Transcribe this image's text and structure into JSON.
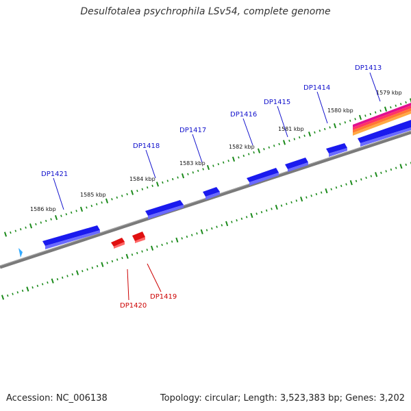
{
  "title": "Desulfotalea psychrophila LSv54, complete genome",
  "accession": "Accession: NC_006138",
  "stats": "Topology: circular; Length: 3,523,383 bp; Genes: 3,202",
  "colors": {
    "forward_gene": "#1a1aee",
    "reverse_gene": "#e01010",
    "backbone": "#7a7a7a",
    "tick": "#1a8a1a",
    "forward_label": "#1010cc",
    "reverse_label": "#cc0000",
    "marker": "#33aaff"
  },
  "scale_labels": [
    "1579 kbp",
    "1580 kbp",
    "1581 kbp",
    "1582 kbp",
    "1583 kbp",
    "1584 kbp",
    "1585 kbp",
    "1586 kbp"
  ],
  "forward_genes": [
    "DP1413",
    "DP1414",
    "DP1415",
    "DP1416",
    "DP1417",
    "DP1418",
    "DP1421"
  ],
  "reverse_genes": [
    "DP1419",
    "DP1420"
  ],
  "marker_icon": "arrowhead-icon"
}
